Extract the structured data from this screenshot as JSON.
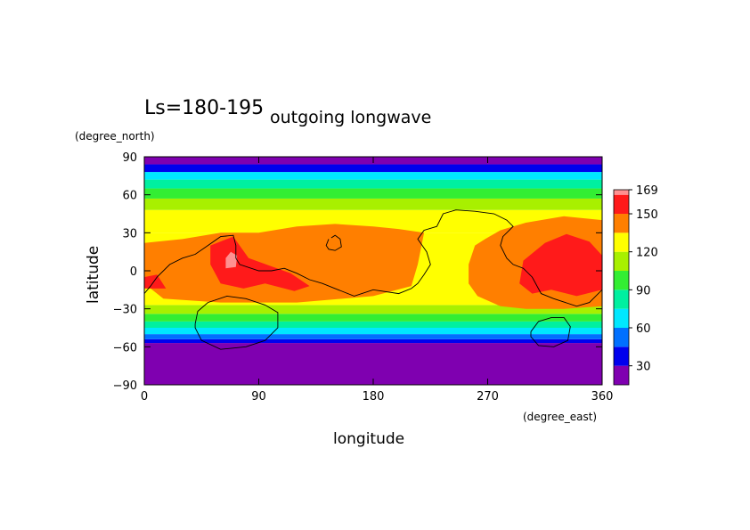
{
  "chart_data": {
    "type": "heatmap",
    "subtitle": "Ls=180-195",
    "title": "outgoing longwave",
    "xlabel": "longitude",
    "ylabel": "latitude",
    "x_unit": "(degree_east)",
    "y_unit": "(degree_north)",
    "xlim": [
      0,
      360
    ],
    "ylim": [
      -90,
      90
    ],
    "x_ticks": [
      0,
      90,
      180,
      270,
      360
    ],
    "y_ticks": [
      -90,
      -60,
      -30,
      0,
      30,
      60,
      90
    ],
    "colorbar": {
      "levels": [
        15,
        30,
        45,
        60,
        75,
        90,
        105,
        120,
        135,
        150,
        165,
        169
      ],
      "colors": [
        "#7f00b0",
        "#0000ee",
        "#0070ff",
        "#00e8ff",
        "#00f0a0",
        "#33ee33",
        "#a8f000",
        "#ffff00",
        "#ff7f00",
        "#ff1a1a",
        "#ff9090"
      ],
      "tick_labels": [
        "30",
        "60",
        "90",
        "120",
        "150",
        "169"
      ]
    },
    "latitude_bands": [
      {
        "lat_min": -90,
        "lat_max": -57,
        "value": 20
      },
      {
        "lat_min": -57,
        "lat_max": -54,
        "value": 35
      },
      {
        "lat_min": -54,
        "lat_max": -50,
        "value": 52
      },
      {
        "lat_min": -50,
        "lat_max": -45,
        "value": 68
      },
      {
        "lat_min": -45,
        "lat_max": -40,
        "value": 82
      },
      {
        "lat_min": -40,
        "lat_max": -34,
        "value": 97
      },
      {
        "lat_min": -34,
        "lat_max": -27,
        "value": 112
      },
      {
        "lat_min": -27,
        "lat_max": 30,
        "value": 127
      },
      {
        "lat_min": 30,
        "lat_max": 48,
        "value": 127
      },
      {
        "lat_min": 48,
        "lat_max": 57,
        "value": 112
      },
      {
        "lat_min": 57,
        "lat_max": 65,
        "value": 97
      },
      {
        "lat_min": 65,
        "lat_max": 72,
        "value": 82
      },
      {
        "lat_min": 72,
        "lat_max": 78,
        "value": 68
      },
      {
        "lat_min": 78,
        "lat_max": 84,
        "value": 35
      },
      {
        "lat_min": 84,
        "lat_max": 90,
        "value": 20
      }
    ],
    "regions": [
      {
        "value": 142,
        "outline": [
          [
            0,
            22
          ],
          [
            0,
            -10
          ],
          [
            15,
            -22
          ],
          [
            60,
            -25
          ],
          [
            120,
            -25
          ],
          [
            180,
            -20
          ],
          [
            210,
            -12
          ],
          [
            215,
            5
          ],
          [
            220,
            30
          ],
          [
            200,
            33
          ],
          [
            180,
            35
          ],
          [
            150,
            37
          ],
          [
            120,
            35
          ],
          [
            90,
            30
          ],
          [
            60,
            30
          ],
          [
            30,
            25
          ]
        ]
      },
      {
        "value": 142,
        "outline": [
          [
            255,
            -10
          ],
          [
            255,
            5
          ],
          [
            260,
            20
          ],
          [
            268,
            25
          ],
          [
            280,
            32
          ],
          [
            300,
            38
          ],
          [
            330,
            43
          ],
          [
            360,
            40
          ],
          [
            360,
            -28
          ],
          [
            330,
            -30
          ],
          [
            300,
            -30
          ],
          [
            280,
            -28
          ],
          [
            262,
            -20
          ]
        ]
      },
      {
        "value": 157,
        "outline": [
          [
            0,
            -5
          ],
          [
            0,
            -14
          ],
          [
            17,
            -14
          ],
          [
            10,
            -3
          ]
        ]
      },
      {
        "value": 157,
        "outline": [
          [
            52,
            20
          ],
          [
            70,
            27
          ],
          [
            82,
            10
          ],
          [
            115,
            -2
          ],
          [
            130,
            -12
          ],
          [
            118,
            -16
          ],
          [
            95,
            -10
          ],
          [
            78,
            -14
          ],
          [
            60,
            -10
          ],
          [
            52,
            5
          ]
        ]
      },
      {
        "value": 157,
        "outline": [
          [
            295,
            -10
          ],
          [
            298,
            8
          ],
          [
            315,
            22
          ],
          [
            332,
            29
          ],
          [
            350,
            23
          ],
          [
            360,
            12
          ],
          [
            360,
            -15
          ],
          [
            340,
            -20
          ],
          [
            320,
            -15
          ],
          [
            305,
            -18
          ]
        ]
      },
      {
        "value": 167,
        "outline": [
          [
            64,
            2
          ],
          [
            64,
            10
          ],
          [
            68,
            15
          ],
          [
            73,
            12
          ],
          [
            72,
            3
          ]
        ]
      }
    ],
    "contour_lines": [
      {
        "points": [
          [
            0,
            -18
          ],
          [
            5,
            -12
          ],
          [
            10,
            -5
          ],
          [
            20,
            5
          ],
          [
            30,
            10
          ],
          [
            40,
            13
          ],
          [
            50,
            20
          ],
          [
            60,
            27
          ],
          [
            70,
            28
          ],
          [
            72,
            20
          ],
          [
            72,
            10
          ],
          [
            75,
            5
          ],
          [
            90,
            0
          ],
          [
            100,
            0
          ],
          [
            110,
            2
          ],
          [
            120,
            -2
          ],
          [
            130,
            -7
          ],
          [
            140,
            -10
          ],
          [
            150,
            -14
          ],
          [
            165,
            -20
          ],
          [
            180,
            -15
          ],
          [
            200,
            -18
          ],
          [
            210,
            -14
          ],
          [
            215,
            -10
          ],
          [
            220,
            -3
          ],
          [
            225,
            5
          ],
          [
            222,
            15
          ],
          [
            215,
            25
          ],
          [
            220,
            32
          ],
          [
            230,
            35
          ],
          [
            235,
            45
          ],
          [
            245,
            48
          ],
          [
            260,
            47
          ],
          [
            275,
            45
          ],
          [
            285,
            40
          ],
          [
            290,
            35
          ],
          [
            282,
            27
          ],
          [
            280,
            20
          ],
          [
            285,
            10
          ],
          [
            290,
            5
          ],
          [
            298,
            2
          ],
          [
            305,
            -5
          ],
          [
            312,
            -18
          ],
          [
            322,
            -22
          ],
          [
            340,
            -28
          ],
          [
            350,
            -25
          ],
          [
            360,
            -15
          ]
        ]
      },
      {
        "points": [
          [
            145,
            25
          ],
          [
            143,
            20
          ],
          [
            145,
            17
          ],
          [
            150,
            16
          ],
          [
            155,
            19
          ],
          [
            154,
            25
          ],
          [
            150,
            28
          ],
          [
            147,
            26
          ]
        ]
      },
      {
        "points": [
          [
            40,
            -42
          ],
          [
            42,
            -32
          ],
          [
            50,
            -25
          ],
          [
            65,
            -20
          ],
          [
            80,
            -22
          ],
          [
            95,
            -27
          ],
          [
            105,
            -33
          ],
          [
            105,
            -45
          ],
          [
            95,
            -55
          ],
          [
            80,
            -60
          ],
          [
            60,
            -62
          ],
          [
            45,
            -55
          ],
          [
            40,
            -45
          ],
          [
            40,
            -42
          ]
        ]
      },
      {
        "points": [
          [
            304,
            -48
          ],
          [
            310,
            -40
          ],
          [
            320,
            -37
          ],
          [
            330,
            -37
          ],
          [
            335,
            -44
          ],
          [
            333,
            -55
          ],
          [
            322,
            -60
          ],
          [
            310,
            -59
          ],
          [
            304,
            -52
          ],
          [
            304,
            -48
          ]
        ]
      }
    ]
  }
}
